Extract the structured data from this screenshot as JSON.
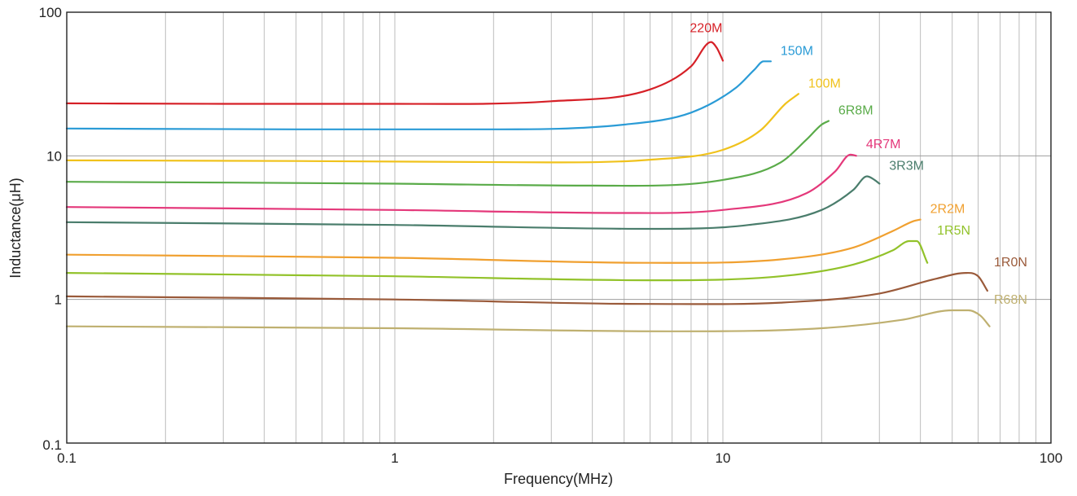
{
  "chart_data": {
    "type": "line",
    "title": "",
    "xlabel": "Frequency(MHz)",
    "ylabel": "Inductance(μH)",
    "xscale": "log",
    "yscale": "log",
    "xlim": [
      0.1,
      100
    ],
    "ylim": [
      0.1,
      100
    ],
    "grid": true,
    "legend": "inline labels at curve ends",
    "x_ticks": [
      "0.1",
      "1",
      "10",
      "100"
    ],
    "y_ticks": [
      "0.1",
      "1",
      "10",
      "100"
    ],
    "series": [
      {
        "name": "220M",
        "color": "#d62027",
        "points": [
          [
            0.1,
            23.2
          ],
          [
            0.3,
            23.0
          ],
          [
            1,
            23.0
          ],
          [
            3,
            24.0
          ],
          [
            6,
            29.0
          ],
          [
            8,
            42.0
          ],
          [
            9.2,
            62.0
          ],
          [
            9.6,
            56.0
          ],
          [
            10,
            46.0
          ]
        ]
      },
      {
        "name": "150M",
        "color": "#2a9bd6",
        "points": [
          [
            0.1,
            15.5
          ],
          [
            0.5,
            15.3
          ],
          [
            2,
            15.3
          ],
          [
            5,
            16.5
          ],
          [
            8,
            20.0
          ],
          [
            11,
            30.0
          ],
          [
            12.5,
            40.0
          ],
          [
            13.3,
            45.5
          ],
          [
            14,
            45.5
          ]
        ]
      },
      {
        "name": "100M",
        "color": "#f0c21c",
        "points": [
          [
            0.1,
            9.3
          ],
          [
            0.5,
            9.2
          ],
          [
            3,
            9.0
          ],
          [
            6,
            9.4
          ],
          [
            10,
            11.0
          ],
          [
            13,
            15.0
          ],
          [
            15.5,
            23.0
          ],
          [
            17,
            27.0
          ]
        ]
      },
      {
        "name": "6R8M",
        "color": "#5aab49",
        "points": [
          [
            0.1,
            6.6
          ],
          [
            1,
            6.4
          ],
          [
            4,
            6.2
          ],
          [
            10,
            6.8
          ],
          [
            15,
            9.0
          ],
          [
            18,
            13.0
          ],
          [
            20,
            16.5
          ],
          [
            21,
            17.5
          ]
        ]
      },
      {
        "name": "4R7M",
        "color": "#e4387a",
        "points": [
          [
            0.1,
            4.4
          ],
          [
            1,
            4.2
          ],
          [
            5,
            4.0
          ],
          [
            10,
            4.2
          ],
          [
            18,
            5.5
          ],
          [
            22,
            7.8
          ],
          [
            24.5,
            10.2
          ],
          [
            25.5,
            10.0
          ]
        ]
      },
      {
        "name": "3R3M",
        "color": "#4a7d6c",
        "points": [
          [
            0.1,
            3.45
          ],
          [
            1,
            3.3
          ],
          [
            6,
            3.1
          ],
          [
            12,
            3.3
          ],
          [
            20,
            4.2
          ],
          [
            25,
            5.8
          ],
          [
            27.5,
            7.2
          ],
          [
            29,
            6.8
          ],
          [
            30,
            6.4
          ]
        ]
      },
      {
        "name": "2R2M",
        "color": "#f0a030",
        "points": [
          [
            0.1,
            2.05
          ],
          [
            1,
            1.95
          ],
          [
            6,
            1.8
          ],
          [
            15,
            1.9
          ],
          [
            25,
            2.3
          ],
          [
            33,
            3.0
          ],
          [
            38,
            3.5
          ],
          [
            40,
            3.6
          ]
        ]
      },
      {
        "name": "1R5N",
        "color": "#92c22a",
        "points": [
          [
            0.1,
            1.53
          ],
          [
            1,
            1.45
          ],
          [
            6,
            1.36
          ],
          [
            15,
            1.45
          ],
          [
            25,
            1.75
          ],
          [
            33,
            2.2
          ],
          [
            37,
            2.55
          ],
          [
            39,
            2.55
          ],
          [
            42,
            1.8
          ]
        ]
      },
      {
        "name": "1R0N",
        "color": "#9a5a3a",
        "points": [
          [
            0.1,
            1.05
          ],
          [
            1,
            1.0
          ],
          [
            6,
            0.93
          ],
          [
            15,
            0.95
          ],
          [
            30,
            1.1
          ],
          [
            45,
            1.4
          ],
          [
            55,
            1.53
          ],
          [
            60,
            1.45
          ],
          [
            64,
            1.15
          ]
        ]
      },
      {
        "name": "R68N",
        "color": "#bfb070",
        "points": [
          [
            0.1,
            0.65
          ],
          [
            1,
            0.63
          ],
          [
            7,
            0.6
          ],
          [
            20,
            0.63
          ],
          [
            35,
            0.72
          ],
          [
            50,
            0.84
          ],
          [
            56,
            0.84
          ],
          [
            61,
            0.77
          ],
          [
            65,
            0.65
          ]
        ]
      }
    ]
  }
}
